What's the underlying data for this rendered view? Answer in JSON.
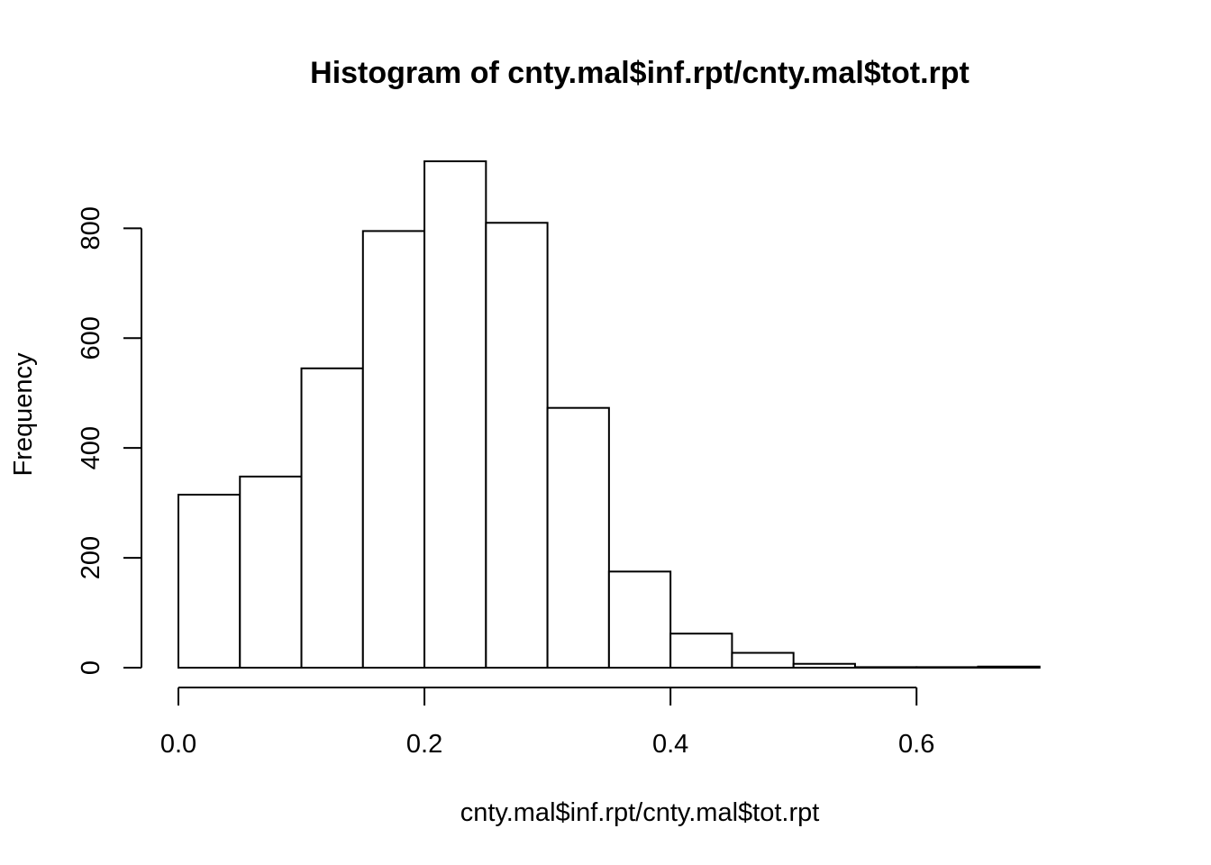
{
  "chart_data": {
    "type": "bar",
    "title": "Histogram of cnty.mal$inf.rpt/cnty.mal$tot.rpt",
    "xlabel": "cnty.mal$inf.rpt/cnty.mal$tot.rpt",
    "ylabel": "Frequency",
    "bin_edges": [
      0.0,
      0.05,
      0.1,
      0.15,
      0.2,
      0.25,
      0.3,
      0.35,
      0.4,
      0.45,
      0.5,
      0.55,
      0.6,
      0.65,
      0.7,
      0.75
    ],
    "values": [
      315,
      348,
      545,
      795,
      922,
      810,
      473,
      175,
      62,
      27,
      7,
      1,
      1,
      2,
      0
    ],
    "xlim": [
      0.0,
      0.75
    ],
    "ylim": [
      0,
      922
    ],
    "x_ticks": [
      0.0,
      0.2,
      0.4,
      0.6
    ],
    "x_tick_labels": [
      "0.0",
      "0.2",
      "0.4",
      "0.6"
    ],
    "y_ticks": [
      0,
      200,
      400,
      600,
      800
    ],
    "y_tick_labels": [
      "0",
      "200",
      "400",
      "600",
      "800"
    ],
    "grid": false,
    "bar_fill": "#ffffff",
    "bar_stroke": "#000000"
  }
}
